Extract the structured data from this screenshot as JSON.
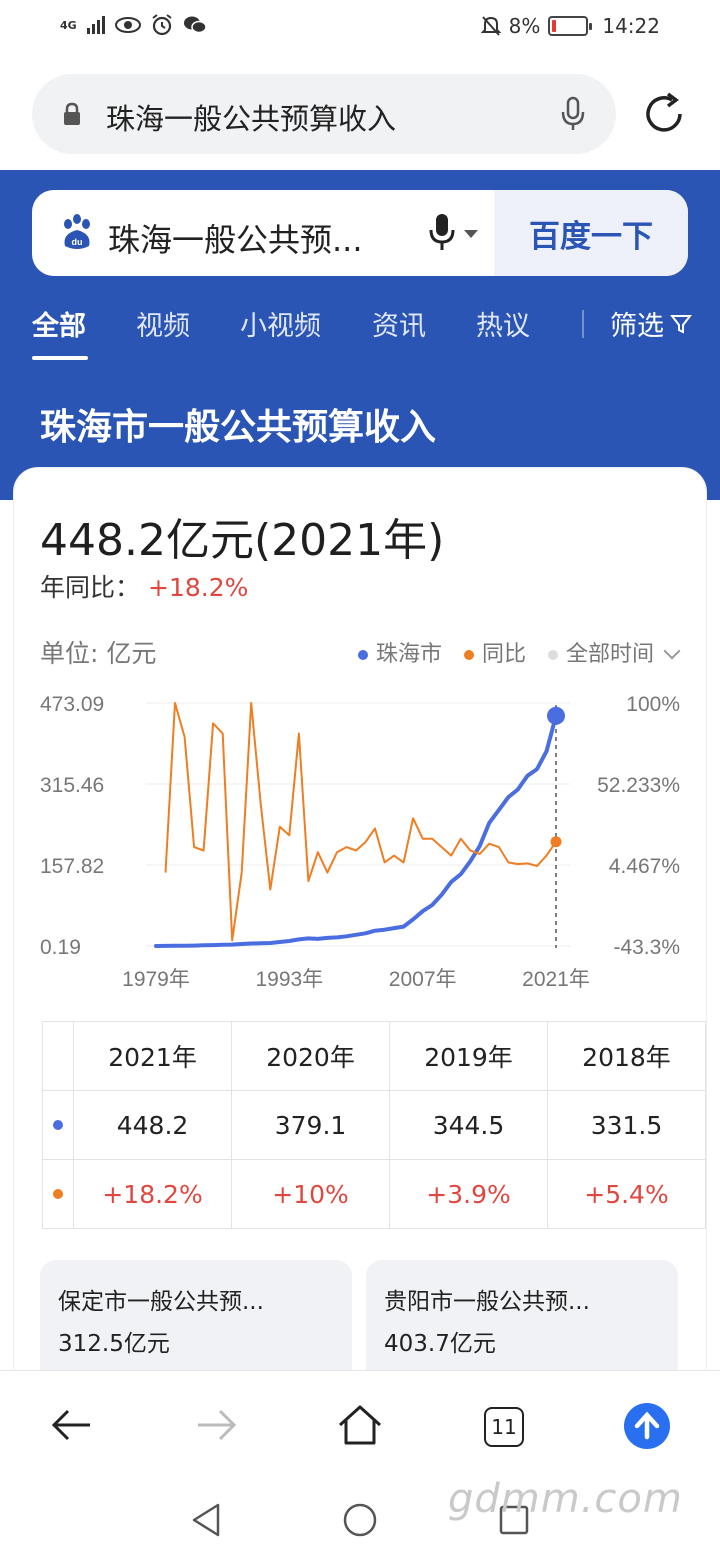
{
  "status_bar": {
    "network": "4G",
    "battery": "8%",
    "time": "14:22"
  },
  "browser": {
    "url_text": "珠海一般公共预算收入"
  },
  "search": {
    "query": "珠海一般公共预...",
    "button": "百度一下"
  },
  "tabs": [
    {
      "label": "全部",
      "active": true
    },
    {
      "label": "视频",
      "active": false
    },
    {
      "label": "小视频",
      "active": false
    },
    {
      "label": "资讯",
      "active": false
    },
    {
      "label": "热议",
      "active": false
    }
  ],
  "filter_label": "筛选",
  "result_title": "珠海市一般公共预算收入",
  "card": {
    "headline": "448.2亿元(2021年)",
    "yoy_label": "年同比：",
    "yoy_value": "+18.2%",
    "unit": "单位: 亿元",
    "legend": [
      {
        "name": "珠海市",
        "color": "#4a6ee0"
      },
      {
        "name": "同比",
        "color": "#ef7d22"
      },
      {
        "name": "全部时间",
        "color": "#dddddd"
      }
    ]
  },
  "chart_data": {
    "type": "line",
    "x_ticks": [
      "1979年",
      "1993年",
      "2007年",
      "2021年"
    ],
    "y_left_ticks": [
      "473.09",
      "315.46",
      "157.82",
      "0.19"
    ],
    "y_right_ticks": [
      "100%",
      "52.233%",
      "4.467%",
      "-43.3%"
    ],
    "y_left_range": [
      0.19,
      473.09
    ],
    "y_right_range": [
      -43.3,
      100
    ],
    "grid": true,
    "series": [
      {
        "name": "珠海市",
        "axis": "left",
        "color": "#4a6ee0",
        "x": [
          1979,
          1980,
          1981,
          1982,
          1983,
          1984,
          1985,
          1986,
          1987,
          1988,
          1989,
          1990,
          1991,
          1992,
          1993,
          1994,
          1995,
          1996,
          1997,
          1998,
          1999,
          2000,
          2001,
          2002,
          2003,
          2004,
          2005,
          2006,
          2007,
          2008,
          2009,
          2010,
          2011,
          2012,
          2013,
          2014,
          2015,
          2016,
          2017,
          2018,
          2019,
          2020,
          2021
        ],
        "values": [
          0.2,
          0.3,
          0.5,
          0.8,
          1,
          1.5,
          2,
          2.5,
          3,
          4,
          5,
          5.5,
          6,
          8,
          10,
          13,
          15,
          14,
          16,
          17,
          19,
          22,
          25,
          30,
          32,
          35,
          38,
          52,
          68,
          80,
          100,
          125,
          140,
          165,
          195,
          240,
          265,
          290,
          305,
          331.5,
          344.5,
          379.1,
          448.2
        ]
      },
      {
        "name": "同比",
        "axis": "right",
        "color": "#ef7d22",
        "x": [
          1980,
          1981,
          1982,
          1983,
          1984,
          1985,
          1986,
          1987,
          1988,
          1989,
          1990,
          1991,
          1992,
          1993,
          1994,
          1995,
          1996,
          1997,
          1998,
          1999,
          2000,
          2001,
          2002,
          2003,
          2004,
          2005,
          2006,
          2007,
          2008,
          2009,
          2010,
          2011,
          2012,
          2013,
          2014,
          2015,
          2016,
          2017,
          2018,
          2019,
          2020,
          2021
        ],
        "values": [
          0,
          100,
          80,
          15,
          13,
          88,
          82,
          -40,
          0,
          100,
          40,
          -10,
          27,
          22,
          82,
          -5,
          12,
          0,
          12,
          15,
          13,
          18,
          26,
          6,
          10,
          6,
          32,
          20,
          20,
          15,
          10,
          20,
          13,
          11,
          17,
          15,
          6,
          5,
          5.4,
          3.9,
          10,
          18.2
        ]
      }
    ]
  },
  "table": {
    "headers": [
      "2021年",
      "2020年",
      "2019年",
      "2018年"
    ],
    "values": [
      "448.2",
      "379.1",
      "344.5",
      "331.5"
    ],
    "yoy": [
      "+18.2%",
      "+10%",
      "+3.9%",
      "+5.4%"
    ]
  },
  "related": [
    {
      "title": "保定市一般公共预...",
      "value": "312.5亿元"
    },
    {
      "title": "贵阳市一般公共预...",
      "value": "403.7亿元"
    }
  ],
  "bottom_nav": {
    "tab_count": "11"
  },
  "watermark": "gdmm.com"
}
